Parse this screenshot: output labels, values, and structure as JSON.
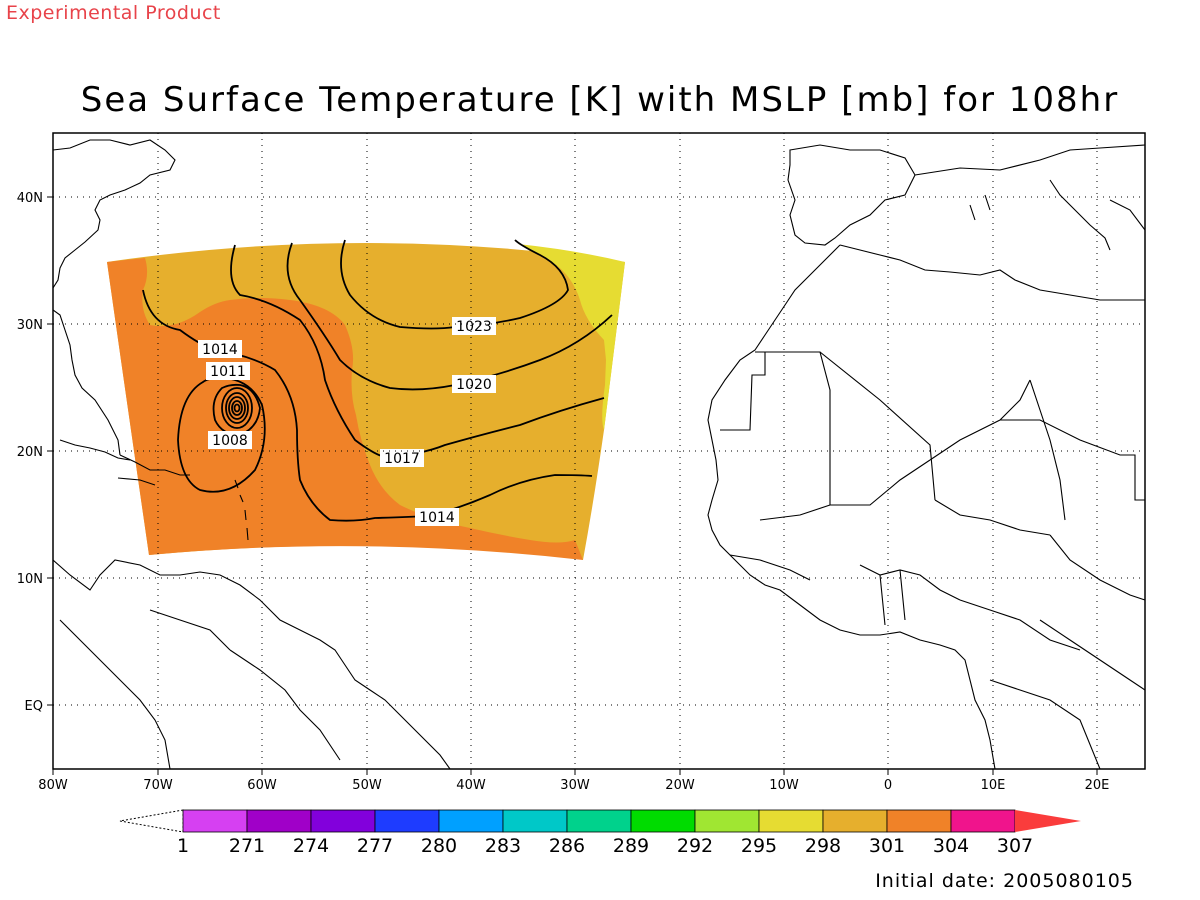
{
  "header": {
    "tag": "Experimental Product",
    "title": "Sea Surface Temperature [K] with MSLP [mb] for 108hr",
    "initial_date": "Initial date: 2005080105"
  },
  "map": {
    "lon_labels": [
      "80W",
      "70W",
      "60W",
      "50W",
      "40W",
      "30W",
      "20W",
      "10W",
      "0",
      "10E",
      "20E"
    ],
    "lat_labels": [
      "40N",
      "30N",
      "20N",
      "10N",
      "EQ"
    ],
    "isobar_labels": [
      "1023",
      "1020",
      "1017",
      "1014",
      "1014",
      "1011",
      "1008"
    ]
  },
  "colorbar": {
    "labels": [
      "1",
      "271",
      "274",
      "277",
      "280",
      "283",
      "286",
      "289",
      "292",
      "295",
      "298",
      "301",
      "304",
      "307"
    ],
    "colors": [
      "#d640f2",
      "#a000c8",
      "#8200dc",
      "#1e3cff",
      "#00a0ff",
      "#00c8c8",
      "#00d28c",
      "#00dc00",
      "#a0e632",
      "#e6dc32",
      "#e6af2d",
      "#f08228",
      "#f0148c",
      "#fa3c3c"
    ]
  },
  "colors": {
    "sst_298": "#e6dc32",
    "sst_301": "#e6af2d",
    "sst_304": "#f08228",
    "tag": "#e8434a"
  }
}
